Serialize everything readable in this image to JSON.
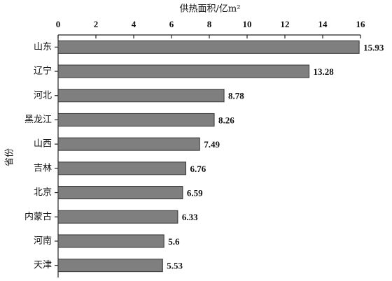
{
  "chart_data": {
    "type": "barh",
    "title": "供热面积/亿m²",
    "y_label": "省份",
    "categories": [
      "山东",
      "辽宁",
      "河北",
      "黑龙江",
      "山西",
      "吉林",
      "北京",
      "内蒙古",
      "河南",
      "天津"
    ],
    "values": [
      15.93,
      13.28,
      8.78,
      8.26,
      7.49,
      6.76,
      6.59,
      6.33,
      5.6,
      5.53
    ],
    "color": "#7f7f7f",
    "xlim": [
      0,
      16
    ],
    "xticks": [
      0,
      2,
      4,
      6,
      8,
      10,
      12,
      14,
      16
    ],
    "x_axis_position": "top"
  }
}
